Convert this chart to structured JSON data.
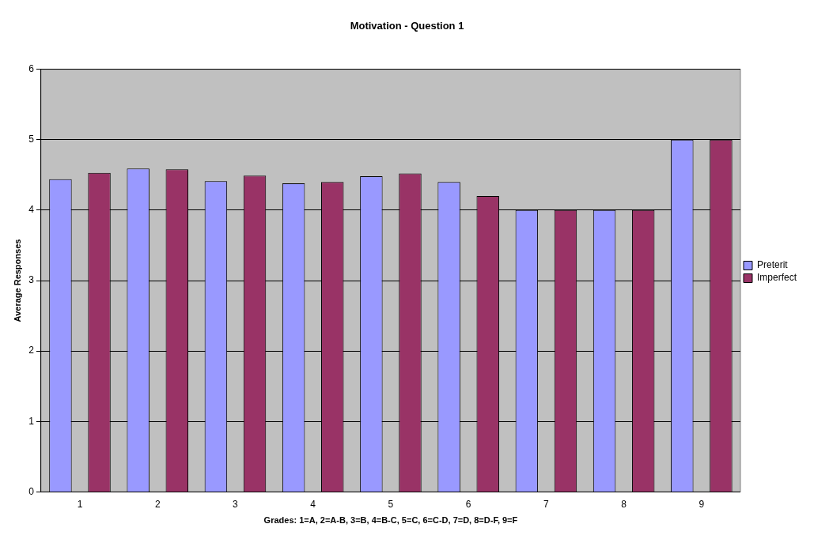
{
  "chart_data": {
    "type": "bar",
    "title": "Motivation - Question 1",
    "xlabel": "Grades: 1=A, 2=A-B, 3=B, 4=B-C, 5=C, 6=C-D, 7=D, 8=D-F, 9=F",
    "ylabel": "Average Responses",
    "categories": [
      "1",
      "2",
      "3",
      "4",
      "5",
      "6",
      "7",
      "8",
      "9"
    ],
    "series": [
      {
        "name": "Preterit",
        "color": "#9999ff",
        "values": [
          4.44,
          4.59,
          4.41,
          4.38,
          4.48,
          4.4,
          4.0,
          4.0,
          5.0
        ]
      },
      {
        "name": "Imperfect",
        "color": "#993366",
        "values": [
          4.53,
          4.58,
          4.49,
          4.4,
          4.52,
          4.2,
          4.0,
          4.0,
          5.0
        ]
      }
    ],
    "ylim": [
      0,
      6
    ],
    "yticks": [
      0,
      1,
      2,
      3,
      4,
      5,
      6
    ],
    "grid": "y",
    "legend": "right"
  }
}
